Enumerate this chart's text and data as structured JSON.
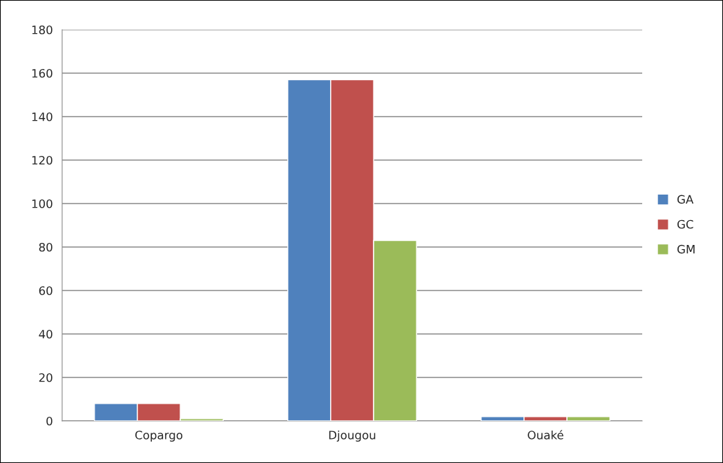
{
  "chart_data": {
    "type": "bar",
    "categories": [
      "Copargo",
      "Djougou",
      "Ouaké"
    ],
    "series": [
      {
        "name": "GA",
        "color": "#4f81bd",
        "values": [
          8,
          157,
          2
        ]
      },
      {
        "name": "GC",
        "color": "#c0504d",
        "values": [
          8,
          157,
          2
        ]
      },
      {
        "name": "GM",
        "color": "#9bbb59",
        "values": [
          1,
          83,
          2
        ]
      }
    ],
    "ylim": [
      0,
      180
    ],
    "yticks": [
      0,
      20,
      40,
      60,
      80,
      100,
      120,
      140,
      160,
      180
    ],
    "grid": "y",
    "legend": "right"
  }
}
